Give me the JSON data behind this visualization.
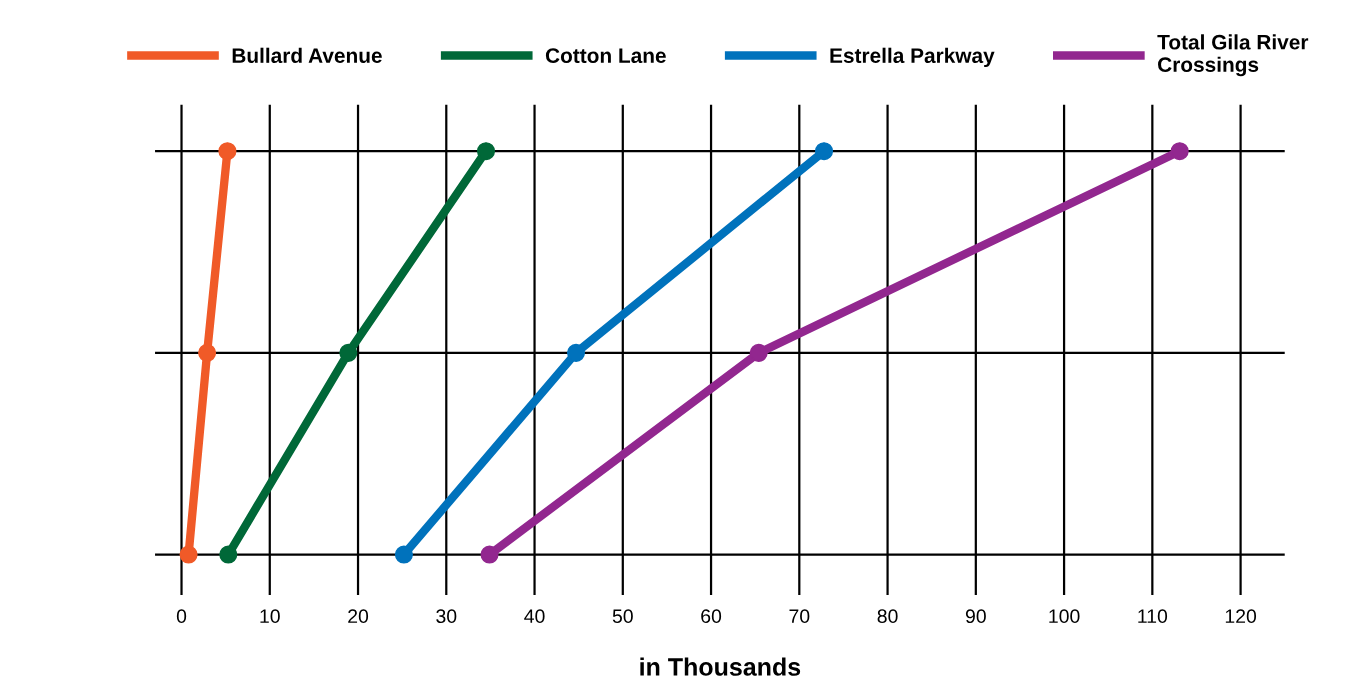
{
  "chart_data": {
    "type": "line",
    "orientation": "horizontal",
    "categories": [
      null,
      null,
      null
    ],
    "series": [
      {
        "name": "Bullard Avenue",
        "color": "#f05a28",
        "values": [
          5.2,
          2.9,
          0.8
        ]
      },
      {
        "name": "Cotton Lane",
        "color": "#006838",
        "values": [
          34.5,
          18.9,
          5.3
        ]
      },
      {
        "name": "Estrella Parkway",
        "color": "#0072bc",
        "values": [
          72.8,
          44.7,
          25.2
        ]
      },
      {
        "name": "Total Gila River\nCrossings",
        "color": "#92278f",
        "values": [
          113.1,
          65.4,
          34.9
        ]
      }
    ],
    "xlabel": "in Thousands",
    "xlim": [
      -3,
      125
    ],
    "xticks": [
      0,
      10,
      20,
      30,
      40,
      50,
      60,
      70,
      80,
      90,
      100,
      110,
      120
    ],
    "grid": true,
    "legend": "top",
    "marker": "circle",
    "line_style": "solid",
    "tick_labels": "x"
  }
}
